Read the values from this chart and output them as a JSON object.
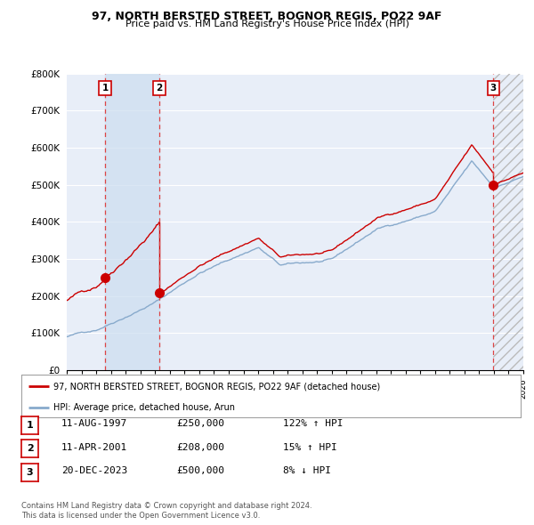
{
  "title": "97, NORTH BERSTED STREET, BOGNOR REGIS, PO22 9AF",
  "subtitle": "Price paid vs. HM Land Registry's House Price Index (HPI)",
  "sale_dates_label": [
    "1997-08-11",
    "2001-04-11",
    "2023-12-20"
  ],
  "sale_prices": [
    250000,
    208000,
    500000
  ],
  "sale_labels": [
    "1",
    "2",
    "3"
  ],
  "sale_info": [
    [
      "1",
      "11-AUG-1997",
      "£250,000",
      "122% ↑ HPI"
    ],
    [
      "2",
      "11-APR-2001",
      "£208,000",
      "15% ↑ HPI"
    ],
    [
      "3",
      "20-DEC-2023",
      "£500,000",
      "8% ↓ HPI"
    ]
  ],
  "legend_line1": "97, NORTH BERSTED STREET, BOGNOR REGIS, PO22 9AF (detached house)",
  "legend_line2": "HPI: Average price, detached house, Arun",
  "footer": [
    "Contains HM Land Registry data © Crown copyright and database right 2024.",
    "This data is licensed under the Open Government Licence v3.0."
  ],
  "sale_color": "#cc0000",
  "hpi_color": "#88aacc",
  "dashed_color": "#dd4444",
  "background_chart": "#e8eef8",
  "ylim": [
    0,
    800000
  ],
  "yticks": [
    0,
    100000,
    200000,
    300000,
    400000,
    500000,
    600000,
    700000,
    800000
  ],
  "ytick_labels": [
    "£0",
    "£100K",
    "£200K",
    "£300K",
    "£400K",
    "£500K",
    "£600K",
    "£700K",
    "£800K"
  ]
}
